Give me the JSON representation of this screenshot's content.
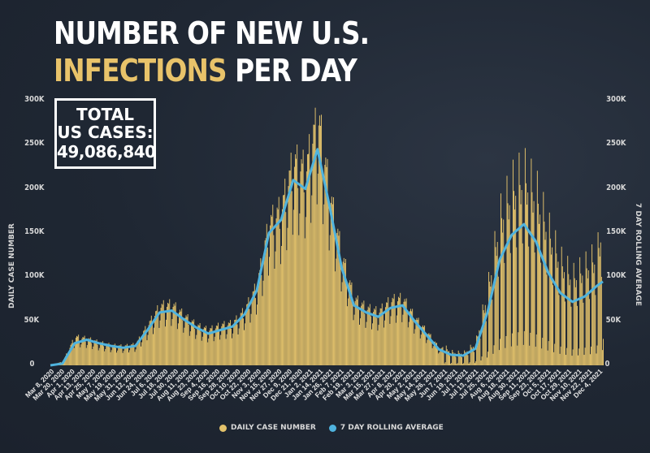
{
  "title": {
    "line1": "NUMBER OF NEW U.S.",
    "line2_accent": "INFECTIONS",
    "line2_rest": " PER DAY"
  },
  "total": {
    "line1": "TOTAL",
    "line2": "US CASES:",
    "value": "49,086,840"
  },
  "colors": {
    "background": "#1f2733",
    "bars": "#e3c26b",
    "line": "#4fb3de",
    "accent_title": "#e8c36a"
  },
  "chart_data": {
    "type": "bar",
    "title": "NUMBER OF NEW U.S. INFECTIONS PER DAY",
    "ylabel_left": "DAILY CASE NUMBER",
    "ylabel_right": "7 DAY ROLLING AVERAGE",
    "ylim": [
      0,
      300000
    ],
    "yticks": [
      "0",
      "50K",
      "100K",
      "150K",
      "200K",
      "250K",
      "300K"
    ],
    "xtick_labels": [
      "Mar 8, 2020",
      "Mar 20, 2020",
      "Apr 1, 2020",
      "Apr 13, 2020",
      "Apr 25, 2020",
      "May 7, 2020",
      "May 19, 2020",
      "May 31, 2020",
      "Jun 12, 2020",
      "Jun 24, 2020",
      "Jul 6, 2020",
      "Jul 18, 2020",
      "Jul 30, 2020",
      "Aug 11, 2020",
      "Aug 23, 2020",
      "Sep 4, 2020",
      "Sep 16, 2020",
      "Sep 28, 2020",
      "Oct 10, 2020",
      "Oct 22, 2020",
      "Nov 3, 2020",
      "Nov 15, 2020",
      "Nov 27, 2020",
      "Dec 9, 2020",
      "Dec 21, 2020",
      "Jan 2, 2021",
      "Jan 14, 2021",
      "Jan 26, 2021",
      "Feb 7, 2021",
      "Feb 19, 2021",
      "Mar 3, 2021",
      "Mar 15, 2021",
      "Mar 27, 2021",
      "Apr 8, 2021",
      "Apr 20, 2021",
      "May 2, 2021",
      "May 14, 2021",
      "May 26, 2021",
      "Jun 7, 2021",
      "Jun 19, 2021",
      "Jul 1, 2021",
      "Jul 13, 2021",
      "Jul 25, 2021",
      "Aug 6, 2021",
      "Aug 18, 2021",
      "Aug 30, 2021",
      "Sep 11, 2021",
      "Sep 23, 2021",
      "Oct 5, 2021",
      "Oct 17, 2021",
      "Oct 29, 2021",
      "Nov 10, 2021",
      "Nov 22, 2021",
      "Dec 4, 2021"
    ],
    "x_range": [
      "Mar 8, 2020",
      "Dec 5, 2021"
    ],
    "series": [
      {
        "name": "DAILY CASE NUMBER",
        "type": "bar",
        "color": "#e3c26b",
        "weekly_points": [
          [
            "2020-03-08",
            0
          ],
          [
            "2020-03-22",
            4000
          ],
          [
            "2020-04-05",
            30000
          ],
          [
            "2020-04-19",
            28000
          ],
          [
            "2020-05-03",
            24000
          ],
          [
            "2020-05-17",
            21000
          ],
          [
            "2020-05-31",
            20000
          ],
          [
            "2020-06-14",
            22000
          ],
          [
            "2020-06-28",
            42000
          ],
          [
            "2020-07-12",
            62000
          ],
          [
            "2020-07-26",
            64000
          ],
          [
            "2020-08-09",
            52000
          ],
          [
            "2020-08-23",
            42000
          ],
          [
            "2020-09-06",
            37000
          ],
          [
            "2020-09-20",
            42000
          ],
          [
            "2020-10-04",
            44000
          ],
          [
            "2020-10-18",
            58000
          ],
          [
            "2020-11-01",
            84000
          ],
          [
            "2020-11-15",
            150000
          ],
          [
            "2020-11-29",
            165000
          ],
          [
            "2020-12-13",
            215000
          ],
          [
            "2020-12-27",
            205000
          ],
          [
            "2021-01-10",
            265000
          ],
          [
            "2021-01-24",
            180000
          ],
          [
            "2021-02-07",
            115000
          ],
          [
            "2021-02-21",
            70000
          ],
          [
            "2021-03-07",
            60000
          ],
          [
            "2021-03-21",
            56000
          ],
          [
            "2021-04-04",
            68000
          ],
          [
            "2021-04-18",
            70000
          ],
          [
            "2021-05-02",
            50000
          ],
          [
            "2021-05-16",
            35000
          ],
          [
            "2021-05-30",
            18000
          ],
          [
            "2021-06-13",
            11000
          ],
          [
            "2021-06-27",
            10000
          ],
          [
            "2021-07-11",
            18000
          ],
          [
            "2021-07-25",
            62000
          ],
          [
            "2021-08-08",
            120000
          ],
          [
            "2021-08-22",
            145000
          ],
          [
            "2021-09-05",
            155000
          ],
          [
            "2021-09-19",
            140000
          ],
          [
            "2021-10-03",
            110000
          ],
          [
            "2021-10-17",
            85000
          ],
          [
            "2021-10-31",
            72000
          ],
          [
            "2021-11-14",
            80000
          ],
          [
            "2021-11-28",
            90000
          ],
          [
            "2021-12-05",
            120000
          ]
        ]
      },
      {
        "name": "7 DAY ROLLING AVERAGE",
        "type": "line",
        "color": "#4fb3de",
        "weekly_points": [
          [
            "2020-03-08",
            0
          ],
          [
            "2020-03-22",
            2000
          ],
          [
            "2020-04-05",
            25000
          ],
          [
            "2020-04-19",
            29000
          ],
          [
            "2020-05-03",
            25000
          ],
          [
            "2020-05-17",
            22000
          ],
          [
            "2020-05-31",
            20000
          ],
          [
            "2020-06-14",
            22000
          ],
          [
            "2020-06-28",
            40000
          ],
          [
            "2020-07-12",
            60000
          ],
          [
            "2020-07-26",
            62000
          ],
          [
            "2020-08-09",
            52000
          ],
          [
            "2020-08-23",
            43000
          ],
          [
            "2020-09-06",
            36000
          ],
          [
            "2020-09-20",
            40000
          ],
          [
            "2020-10-04",
            44000
          ],
          [
            "2020-10-18",
            58000
          ],
          [
            "2020-11-01",
            85000
          ],
          [
            "2020-11-15",
            150000
          ],
          [
            "2020-11-29",
            165000
          ],
          [
            "2020-12-13",
            210000
          ],
          [
            "2020-12-27",
            200000
          ],
          [
            "2021-01-10",
            245000
          ],
          [
            "2021-01-24",
            180000
          ],
          [
            "2021-02-07",
            110000
          ],
          [
            "2021-02-21",
            68000
          ],
          [
            "2021-03-07",
            60000
          ],
          [
            "2021-03-21",
            55000
          ],
          [
            "2021-04-04",
            65000
          ],
          [
            "2021-04-18",
            68000
          ],
          [
            "2021-05-02",
            50000
          ],
          [
            "2021-05-16",
            34000
          ],
          [
            "2021-05-30",
            18000
          ],
          [
            "2021-06-13",
            12000
          ],
          [
            "2021-06-27",
            11000
          ],
          [
            "2021-07-11",
            19000
          ],
          [
            "2021-07-25",
            60000
          ],
          [
            "2021-08-08",
            120000
          ],
          [
            "2021-08-22",
            148000
          ],
          [
            "2021-09-05",
            160000
          ],
          [
            "2021-09-19",
            140000
          ],
          [
            "2021-10-03",
            105000
          ],
          [
            "2021-10-17",
            82000
          ],
          [
            "2021-10-31",
            72000
          ],
          [
            "2021-11-14",
            78000
          ],
          [
            "2021-11-28",
            90000
          ],
          [
            "2021-12-05",
            95000
          ]
        ]
      }
    ],
    "legend": [
      "DAILY CASE NUMBER",
      "7 DAY ROLLING AVERAGE"
    ],
    "legend_position": "bottom-center",
    "grid": false
  }
}
